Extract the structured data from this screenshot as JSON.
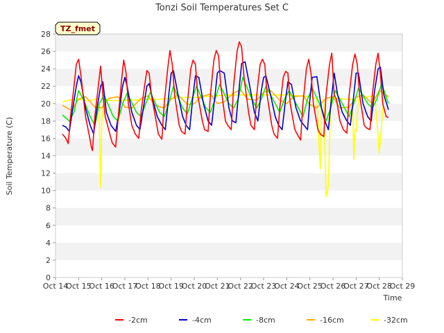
{
  "chart_data": {
    "type": "line",
    "title": "Tonzi Soil Temperatures Set C",
    "xlabel": "Time",
    "ylabel": "Soil Temperature (C)",
    "ylim": [
      0,
      28
    ],
    "xlim": [
      14,
      29
    ],
    "y_ticks": [
      0,
      2,
      4,
      6,
      8,
      10,
      12,
      14,
      16,
      18,
      20,
      22,
      24,
      26,
      28
    ],
    "x_ticks": [
      {
        "value": 14,
        "label": "Oct 14"
      },
      {
        "value": 15,
        "label": "Oct 15"
      },
      {
        "value": 16,
        "label": "Oct 16"
      },
      {
        "value": 17,
        "label": "Oct 17"
      },
      {
        "value": 18,
        "label": "Oct 18"
      },
      {
        "value": 19,
        "label": "Oct 19"
      },
      {
        "value": 20,
        "label": "Oct 20"
      },
      {
        "value": 21,
        "label": "Oct 21"
      },
      {
        "value": 22,
        "label": "Oct 22"
      },
      {
        "value": 23,
        "label": "Oct 23"
      },
      {
        "value": 24,
        "label": "Oct 24"
      },
      {
        "value": 25,
        "label": "Oct 25"
      },
      {
        "value": 26,
        "label": "Oct 26"
      },
      {
        "value": 27,
        "label": "Oct 27"
      },
      {
        "value": 28,
        "label": "Oct 28"
      },
      {
        "value": 29,
        "label": "Oct 29"
      }
    ],
    "grid": "horizontal bands",
    "legend_position": "bottom",
    "site_label": "TZ_fmet",
    "series": [
      {
        "name": "-2cm",
        "color": "#ff0000",
        "x": [
          14.3,
          14.45,
          14.55,
          14.65,
          14.8,
          14.9,
          15.0,
          15.1,
          15.3,
          15.45,
          15.55,
          15.6,
          15.7,
          15.85,
          15.95,
          16.05,
          16.15,
          16.35,
          16.45,
          16.6,
          16.7,
          16.85,
          16.95,
          17.05,
          17.15,
          17.3,
          17.45,
          17.6,
          17.7,
          17.85,
          17.95,
          18.05,
          18.15,
          18.35,
          18.45,
          18.6,
          18.7,
          18.85,
          18.95,
          19.05,
          19.15,
          19.35,
          19.45,
          19.6,
          19.7,
          19.85,
          19.95,
          20.05,
          20.15,
          20.35,
          20.45,
          20.6,
          20.7,
          20.85,
          20.95,
          21.05,
          21.15,
          21.35,
          21.45,
          21.6,
          21.7,
          21.85,
          21.95,
          22.05,
          22.15,
          22.35,
          22.45,
          22.6,
          22.7,
          22.85,
          22.95,
          23.05,
          23.15,
          23.35,
          23.45,
          23.6,
          23.7,
          23.85,
          23.95,
          24.05,
          24.15,
          24.35,
          24.45,
          24.6,
          24.7,
          24.85,
          24.95,
          25.05,
          25.15,
          25.35,
          25.45,
          25.6,
          25.7,
          25.85,
          25.95,
          26.05,
          26.15,
          26.3,
          26.45,
          26.6,
          26.7,
          26.85,
          26.95,
          27.05,
          27.15,
          27.35,
          27.45,
          27.6,
          27.7,
          27.85,
          27.95,
          28.05,
          28.15,
          28.3,
          28.4
        ],
        "y": [
          16.5,
          16.0,
          15.4,
          18.5,
          22.0,
          24.5,
          25.1,
          23.2,
          18.5,
          16.5,
          15.0,
          14.6,
          18.5,
          22.0,
          24.3,
          21.0,
          18.5,
          16.5,
          15.5,
          15.0,
          18.0,
          22.5,
          25.0,
          23.5,
          20.0,
          17.5,
          16.5,
          16.0,
          19.0,
          22.0,
          23.8,
          23.5,
          21.0,
          18.0,
          16.5,
          15.9,
          20.0,
          24.0,
          26.1,
          24.5,
          21.0,
          17.5,
          16.8,
          16.5,
          20.0,
          24.0,
          25.0,
          24.5,
          21.0,
          18.0,
          17.0,
          16.8,
          21.0,
          25.0,
          26.1,
          25.5,
          22.0,
          18.0,
          17.5,
          17.0,
          22.0,
          26.0,
          27.1,
          26.5,
          23.0,
          19.0,
          17.5,
          17.0,
          21.0,
          24.5,
          25.1,
          24.5,
          21.0,
          17.5,
          16.5,
          16.0,
          19.5,
          23.0,
          23.7,
          23.5,
          20.0,
          17.0,
          16.5,
          15.8,
          20.0,
          24.0,
          25.1,
          23.5,
          20.0,
          17.0,
          16.5,
          16.2,
          21.0,
          24.5,
          25.8,
          21.0,
          20.5,
          18.0,
          17.0,
          16.6,
          21.0,
          24.5,
          25.7,
          24.5,
          21.0,
          17.5,
          17.2,
          17.0,
          21.0,
          24.5,
          25.8,
          23.5,
          20.0,
          18.5,
          18.4
        ]
      },
      {
        "name": "-4cm",
        "color": "#0000cc",
        "x": [
          14.3,
          14.45,
          14.6,
          14.75,
          14.9,
          15.0,
          15.1,
          15.3,
          15.5,
          15.65,
          15.8,
          15.95,
          16.05,
          16.2,
          16.4,
          16.6,
          16.75,
          16.9,
          17.0,
          17.1,
          17.3,
          17.5,
          17.65,
          17.8,
          17.95,
          18.05,
          18.2,
          18.4,
          18.6,
          18.75,
          18.9,
          19.0,
          19.1,
          19.3,
          19.5,
          19.65,
          19.8,
          19.95,
          20.05,
          20.2,
          20.4,
          20.6,
          20.75,
          20.9,
          21.0,
          21.1,
          21.3,
          21.5,
          21.65,
          21.8,
          21.95,
          22.05,
          22.2,
          22.4,
          22.6,
          22.75,
          22.9,
          23.0,
          23.1,
          23.3,
          23.5,
          23.65,
          23.8,
          23.95,
          24.05,
          24.2,
          24.4,
          24.6,
          24.75,
          24.9,
          25.0,
          25.1,
          25.3,
          25.5,
          25.65,
          25.8,
          25.95,
          26.05,
          26.2,
          26.4,
          26.6,
          26.75,
          26.9,
          27.0,
          27.1,
          27.3,
          27.5,
          27.65,
          27.8,
          27.95,
          28.05,
          28.2,
          28.4
        ],
        "y": [
          17.5,
          17.3,
          16.8,
          19.5,
          22.0,
          23.2,
          22.5,
          19.5,
          17.5,
          16.5,
          19.5,
          22.0,
          22.5,
          19.0,
          17.5,
          16.8,
          19.0,
          22.0,
          23.0,
          22.0,
          19.0,
          17.5,
          17.0,
          19.5,
          22.0,
          22.3,
          20.5,
          18.5,
          17.5,
          17.0,
          21.0,
          23.5,
          23.8,
          21.0,
          18.5,
          17.5,
          17.0,
          21.0,
          23.2,
          23.0,
          20.0,
          18.0,
          17.5,
          21.0,
          23.5,
          23.8,
          23.5,
          19.5,
          18.0,
          17.8,
          22.0,
          24.6,
          24.8,
          22.0,
          19.0,
          18.0,
          21.5,
          23.0,
          23.2,
          21.0,
          18.5,
          17.5,
          17.0,
          20.5,
          22.5,
          22.2,
          19.5,
          18.0,
          17.5,
          17.0,
          20.5,
          23.0,
          23.1,
          19.5,
          18.0,
          17.0,
          21.0,
          23.5,
          21.0,
          19.0,
          18.0,
          17.5,
          21.0,
          23.5,
          23.5,
          20.0,
          18.5,
          18.0,
          21.5,
          24.0,
          24.2,
          21.0,
          19.3
        ]
      },
      {
        "name": "-8cm",
        "color": "#00ee00",
        "x": [
          14.3,
          14.6,
          14.8,
          15.0,
          15.2,
          15.5,
          15.7,
          15.9,
          16.1,
          16.5,
          16.7,
          16.9,
          17.1,
          17.5,
          17.7,
          17.9,
          18.1,
          18.5,
          18.7,
          18.9,
          19.1,
          19.5,
          19.7,
          19.9,
          20.1,
          20.5,
          20.7,
          20.9,
          21.1,
          21.5,
          21.7,
          21.9,
          22.1,
          22.5,
          22.7,
          22.9,
          23.1,
          23.5,
          23.7,
          23.9,
          24.1,
          24.5,
          24.7,
          24.9,
          25.1,
          25.5,
          25.7,
          25.9,
          26.1,
          26.5,
          26.7,
          26.9,
          27.1,
          27.5,
          27.7,
          27.9,
          28.1,
          28.4
        ],
        "y": [
          18.7,
          18.0,
          19.0,
          21.5,
          20.5,
          18.5,
          17.5,
          20.0,
          21.0,
          18.5,
          18.0,
          20.0,
          21.2,
          19.0,
          18.5,
          20.0,
          21.3,
          19.0,
          18.5,
          20.0,
          22.0,
          19.5,
          18.8,
          20.5,
          22.0,
          19.5,
          19.0,
          20.5,
          22.2,
          20.0,
          19.5,
          20.5,
          23.0,
          20.5,
          19.5,
          20.5,
          22.0,
          20.0,
          19.0,
          20.5,
          21.5,
          19.5,
          18.5,
          20.5,
          21.8,
          19.5,
          18.0,
          19.5,
          21.5,
          19.5,
          18.5,
          20.0,
          21.8,
          20.0,
          19.5,
          20.5,
          22.3,
          20.0
        ]
      },
      {
        "name": "-16cm",
        "color": "#ffaa00",
        "x": [
          14.3,
          14.7,
          15.0,
          15.3,
          15.7,
          16.0,
          16.3,
          16.7,
          17.0,
          17.3,
          17.7,
          18.0,
          18.3,
          18.7,
          19.0,
          19.3,
          19.7,
          20.0,
          20.3,
          20.7,
          21.0,
          21.3,
          21.7,
          22.0,
          22.3,
          22.7,
          23.0,
          23.3,
          23.7,
          24.0,
          24.3,
          24.7,
          25.0,
          25.3,
          25.7,
          26.0,
          26.3,
          26.7,
          27.0,
          27.3,
          27.7,
          28.0,
          28.4
        ],
        "y": [
          19.8,
          19.2,
          20.5,
          20.8,
          19.6,
          19.5,
          20.6,
          20.8,
          19.6,
          19.5,
          20.6,
          20.9,
          19.8,
          19.5,
          20.5,
          21.0,
          19.9,
          20.0,
          20.8,
          21.1,
          20.0,
          20.2,
          21.2,
          21.6,
          20.5,
          20.4,
          21.3,
          21.5,
          20.4,
          20.0,
          20.8,
          20.9,
          19.9,
          19.5,
          20.6,
          20.8,
          19.5,
          19.6,
          20.7,
          21.0,
          20.0,
          21.5,
          20.8
        ]
      },
      {
        "name": "-32cm",
        "color": "#ffff00",
        "x": [
          14.3,
          14.6,
          15.0,
          15.5,
          15.8,
          15.9,
          15.95,
          16.0,
          16.1,
          16.5,
          17.0,
          17.5,
          18.0,
          18.5,
          19.0,
          19.5,
          20.0,
          20.5,
          21.0,
          21.5,
          22.0,
          22.5,
          23.0,
          23.5,
          24.0,
          24.5,
          25.0,
          25.3,
          25.45,
          25.5,
          25.6,
          25.7,
          25.8,
          25.9,
          26.0,
          26.1,
          26.2,
          26.5,
          26.85,
          26.9,
          26.95,
          27.0,
          27.1,
          27.5,
          27.8,
          27.9,
          28.0,
          28.2,
          28.4
        ],
        "y": [
          20.2,
          20.4,
          20.5,
          20.3,
          20.6,
          17.5,
          10.4,
          17.8,
          20.5,
          20.3,
          20.4,
          20.4,
          20.5,
          20.5,
          20.6,
          20.7,
          20.7,
          20.8,
          20.9,
          21.0,
          21.0,
          21.0,
          21.0,
          21.0,
          21.0,
          20.9,
          20.8,
          20.5,
          12.5,
          20.0,
          20.5,
          9.3,
          10.5,
          20.5,
          20.8,
          20.6,
          20.6,
          20.5,
          20.5,
          13.6,
          17.0,
          16.8,
          20.5,
          20.8,
          20.9,
          18.0,
          14.3,
          20.8,
          20.8
        ]
      }
    ]
  }
}
